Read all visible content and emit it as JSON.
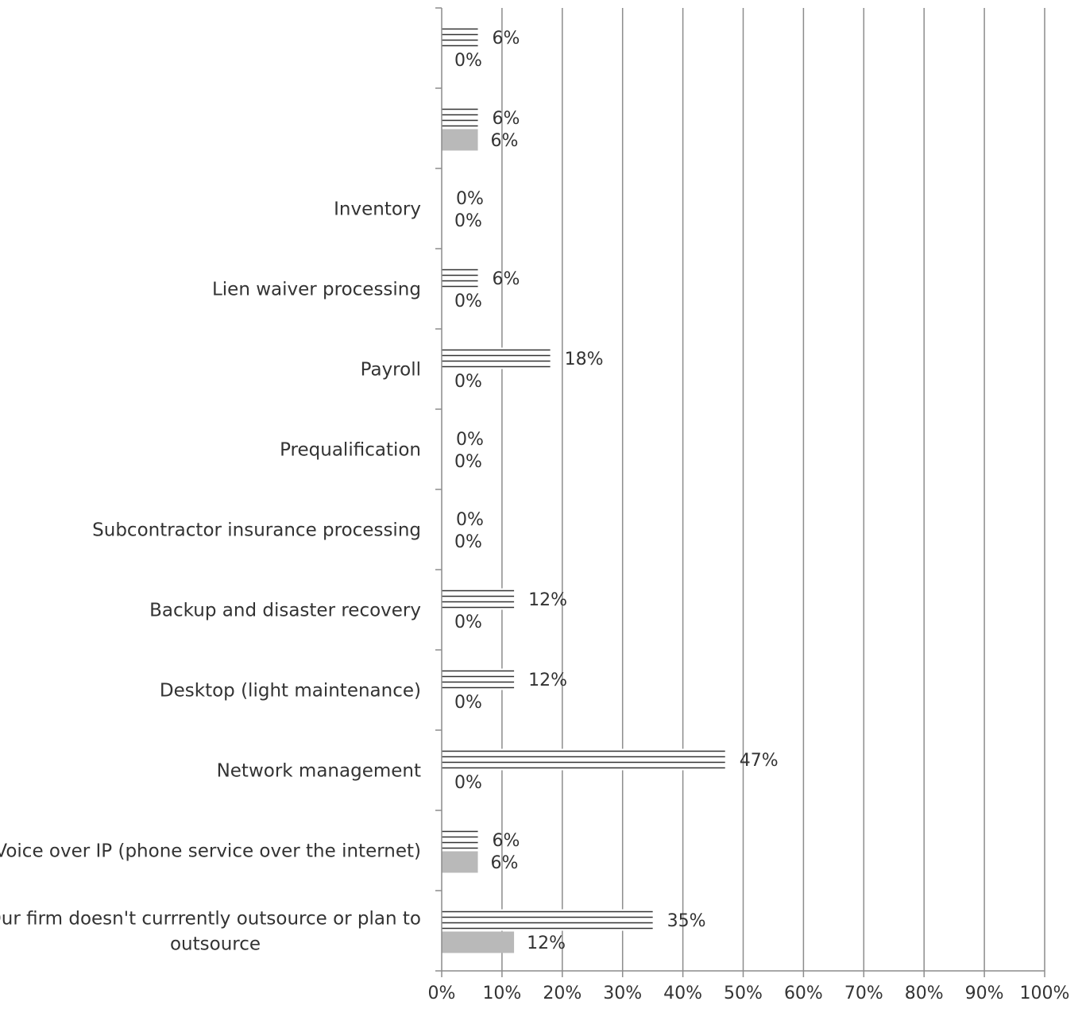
{
  "chart_data": {
    "type": "bar",
    "orientation": "horizontal",
    "categories": [
      "",
      "",
      "Inventory",
      "Lien waiver processing",
      "Payroll",
      "Prequalification",
      "Subcontractor insurance processing",
      "Backup and disaster recovery",
      "Desktop (light maintenance)",
      "Network management",
      "Voice over IP (phone service over the internet)",
      "Our firm doesn't currrently outsource or plan to outsource"
    ],
    "series": [
      {
        "pattern": "horizontal-lines",
        "values": [
          6,
          6,
          0,
          6,
          18,
          0,
          0,
          12,
          12,
          47,
          6,
          35
        ],
        "labels": [
          "6%",
          "6%",
          "0%",
          "6%",
          "18%",
          "0%",
          "0%",
          "12%",
          "12%",
          "47%",
          "6%",
          "35%"
        ]
      },
      {
        "pattern": "solid",
        "color": "#b9b9b9",
        "values": [
          0,
          6,
          0,
          0,
          0,
          0,
          0,
          0,
          0,
          0,
          6,
          12
        ],
        "labels": [
          "0%",
          "6%",
          "0%",
          "0%",
          "0%",
          "0%",
          "0%",
          "0%",
          "0%",
          "0%",
          "6%",
          "12%"
        ]
      }
    ],
    "xlim": [
      0,
      100
    ],
    "xticks": [
      "0%",
      "10%",
      "20%",
      "30%",
      "40%",
      "50%",
      "60%",
      "70%",
      "80%",
      "90%",
      "100%"
    ],
    "grid": true,
    "legend": "none",
    "colors": {
      "grid": "#8c8c8c",
      "axis": "#8c8c8c",
      "lines": "#333333",
      "solid": "#b9b9b9"
    }
  }
}
